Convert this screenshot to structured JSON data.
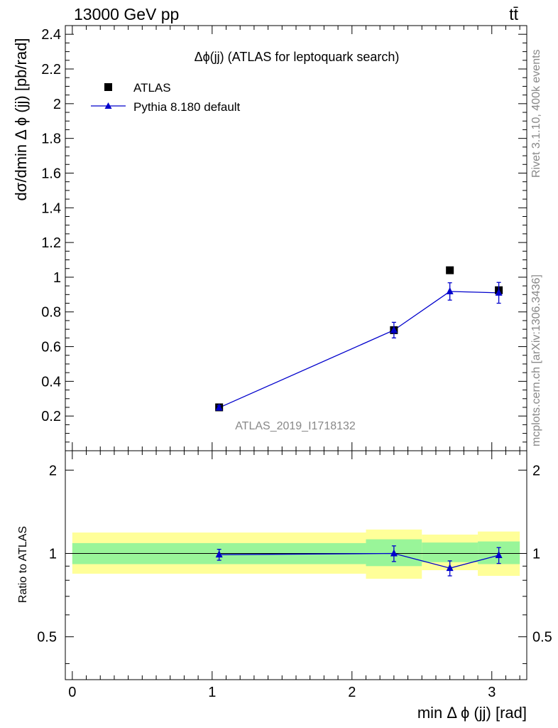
{
  "header": {
    "energy_label": "13000 GeV pp",
    "process_label": "tt̄"
  },
  "side_labels": {
    "rivet": "Rivet 3.1.10,  400k events",
    "source": "mcplots.cern.ch [arXiv:1306.3436]"
  },
  "watermark": "ATLAS_2019_I1718132",
  "colors": {
    "data": "#000000",
    "mc": "#0000cc",
    "band_inner": "#99f599",
    "band_outer": "#ffff99"
  },
  "chart_data": [
    {
      "type": "scatter",
      "title": "Δϕ(jj) (ATLAS for leptoquark search)",
      "ylabel": "dσ/dmin Δ ϕ (jj) [pb/rad]",
      "xlabel": "",
      "xlim": [
        -0.05,
        3.25
      ],
      "ylim": [
        0,
        2.45
      ],
      "yticks": [
        0.2,
        0.4,
        0.6,
        0.8,
        1,
        1.2,
        1.4,
        1.6,
        1.8,
        2,
        2.2,
        2.4
      ],
      "ytick_labels": [
        "0.2",
        "0.4",
        "0.6",
        "0.8",
        "1",
        "1.2",
        "1.4",
        "1.6",
        "1.8",
        "2",
        "2.2",
        "2.4"
      ],
      "legend": [
        "ATLAS",
        "Pythia 8.180 default"
      ],
      "legend_position": "top-left",
      "series": [
        {
          "name": "ATLAS",
          "marker": "square",
          "x": [
            1.05,
            2.3,
            2.7,
            3.05
          ],
          "y": [
            0.25,
            0.695,
            1.04,
            0.925
          ]
        },
        {
          "name": "Pythia 8.180 default",
          "marker": "triangle",
          "x": [
            1.05,
            2.3,
            2.7,
            3.05
          ],
          "y": [
            0.248,
            0.695,
            0.918,
            0.91
          ],
          "yerr": [
            0.012,
            0.045,
            0.05,
            0.06
          ]
        }
      ]
    },
    {
      "type": "line",
      "title": "",
      "ylabel": "Ratio to ATLAS",
      "xlabel": "min Δ ϕ (jj) [rad]",
      "xlim": [
        -0.05,
        3.25
      ],
      "ylim": [
        0.35,
        2.35
      ],
      "yscale": "log",
      "xticks": [
        0,
        1,
        2,
        3
      ],
      "xtick_labels": [
        "0",
        "1",
        "2",
        "3"
      ],
      "yticks": [
        0.5,
        1,
        2
      ],
      "ytick_labels": [
        "0.5",
        "1",
        "2"
      ],
      "bands": [
        {
          "x0": 0.0,
          "x1": 2.1,
          "inner": [
            0.915,
            1.09
          ],
          "outer": [
            0.845,
            1.19
          ]
        },
        {
          "x0": 2.1,
          "x1": 2.5,
          "inner": [
            0.9,
            1.125
          ],
          "outer": [
            0.81,
            1.22
          ]
        },
        {
          "x0": 2.5,
          "x1": 2.9,
          "inner": [
            0.93,
            1.095
          ],
          "outer": [
            0.87,
            1.17
          ]
        },
        {
          "x0": 2.9,
          "x1": 3.2,
          "inner": [
            0.915,
            1.105
          ],
          "outer": [
            0.83,
            1.2
          ]
        }
      ],
      "series": [
        {
          "name": "Pythia 8.180 default",
          "marker": "triangle",
          "x": [
            1.05,
            2.3,
            2.7,
            3.05
          ],
          "y": [
            0.99,
            1.0,
            0.885,
            0.985
          ],
          "yerr": [
            0.045,
            0.065,
            0.055,
            0.065
          ]
        }
      ]
    }
  ]
}
